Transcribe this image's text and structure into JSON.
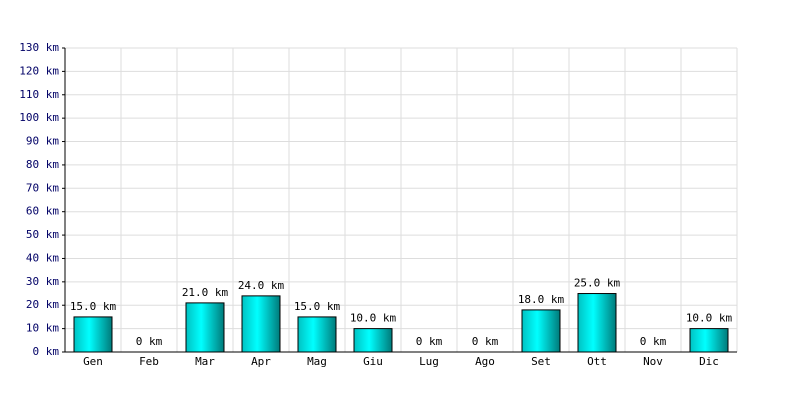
{
  "chart_data": {
    "type": "bar",
    "categories": [
      "Gen",
      "Feb",
      "Mar",
      "Apr",
      "Mag",
      "Giu",
      "Lug",
      "Ago",
      "Set",
      "Ott",
      "Nov",
      "Dic"
    ],
    "values": [
      15,
      0,
      21,
      24,
      15,
      10,
      0,
      0,
      18,
      25,
      0,
      10
    ],
    "value_labels": [
      "15.0 km",
      "0 km",
      "21.0 km",
      "24.0 km",
      "15.0 km",
      "10.0 km",
      "0 km",
      "0 km",
      "18.0 km",
      "25.0 km",
      "0 km",
      "10.0 km"
    ],
    "color": "#00cccc",
    "ylim": [
      0,
      130
    ],
    "yticks": [
      {
        "value": 0,
        "label": "0 km"
      },
      {
        "value": 10,
        "label": "10 km"
      },
      {
        "value": 20,
        "label": "20 km"
      },
      {
        "value": 30,
        "label": "30 km"
      },
      {
        "value": 40,
        "label": "40 km"
      },
      {
        "value": 50,
        "label": "50 km"
      },
      {
        "value": 60,
        "label": "60 km"
      },
      {
        "value": 70,
        "label": "70 km"
      },
      {
        "value": 80,
        "label": "80 km"
      },
      {
        "value": 90,
        "label": "90 km"
      },
      {
        "value": 100,
        "label": "100 km"
      },
      {
        "value": 110,
        "label": "110 km"
      },
      {
        "value": 120,
        "label": "120 km"
      },
      {
        "value": 130,
        "label": "130 km"
      }
    ],
    "grid": true
  }
}
